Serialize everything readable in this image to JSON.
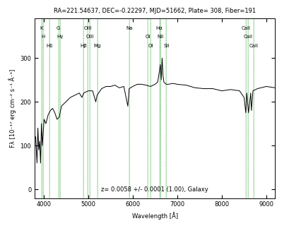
{
  "chart_data": {
    "type": "line",
    "title": "RA=221.54637, DEC=-0.22297, MJD=51662, Plate= 308, Fiber=191",
    "x_label": "Wavelength [Å]",
    "y_label": "Fλ [10⁻¹⁷ erg cm⁻² s⁻¹ Å⁻¹]",
    "annotation": "z= 0.0058 +/- 0.0001 (1.00), Galaxy",
    "x": [
      3820,
      3850,
      3870,
      3890,
      3910,
      3930,
      3950,
      3970,
      3990,
      4010,
      4050,
      4100,
      4150,
      4200,
      4250,
      4300,
      4350,
      4400,
      4450,
      4500,
      4600,
      4700,
      4800,
      4860,
      4900,
      5000,
      5100,
      5170,
      5200,
      5300,
      5400,
      5500,
      5600,
      5700,
      5800,
      5890,
      5920,
      6000,
      6100,
      6200,
      6300,
      6400,
      6500,
      6560,
      6600,
      6620,
      6640,
      6660,
      6680,
      6700,
      6750,
      6800,
      6900,
      7000,
      7200,
      7400,
      7600,
      7800,
      8000,
      8200,
      8400,
      8500,
      8540,
      8560,
      8600,
      8650,
      8665,
      8700,
      8800,
      9000,
      9200
    ],
    "values": [
      120,
      60,
      140,
      90,
      110,
      60,
      150,
      100,
      130,
      160,
      150,
      170,
      180,
      185,
      175,
      160,
      165,
      190,
      195,
      200,
      210,
      215,
      220,
      210,
      220,
      225,
      225,
      200,
      215,
      230,
      235,
      235,
      238,
      232,
      235,
      190,
      230,
      235,
      240,
      240,
      238,
      235,
      240,
      245,
      270,
      285,
      250,
      300,
      260,
      245,
      240,
      240,
      242,
      240,
      238,
      232,
      230,
      230,
      225,
      228,
      225,
      210,
      175,
      220,
      175,
      220,
      180,
      225,
      230,
      235,
      232
    ],
    "color": "#000000",
    "lines": [
      {
        "label": "K",
        "wavelength": 3957
      },
      {
        "label": "H",
        "wavelength": 3992
      },
      {
        "label": "Hδ",
        "wavelength": 4126
      },
      {
        "label": "G",
        "wavelength": 4330
      },
      {
        "label": "Hγ",
        "wavelength": 4366
      },
      {
        "label": "Hβ",
        "wavelength": 4889
      },
      {
        "label": "OIII",
        "wavelength": 4988
      },
      {
        "label": "OIII",
        "wavelength": 5036
      },
      {
        "label": "Mg",
        "wavelength": 5205
      },
      {
        "label": "Na",
        "wavelength": 5928
      },
      {
        "label": "OI",
        "wavelength": 6337
      },
      {
        "label": "OI",
        "wavelength": 6400
      },
      {
        "label": "Hα",
        "wavelength": 6601
      },
      {
        "label": "NII",
        "wavelength": 6621
      },
      {
        "label": "SII",
        "wavelength": 6755
      },
      {
        "label": "CaII",
        "wavelength": 8547
      },
      {
        "label": "CaII",
        "wavelength": 8592
      },
      {
        "label": "CaII",
        "wavelength": 8712
      }
    ],
    "xlim": [
      3800,
      9200
    ],
    "xticks": [
      4000,
      5000,
      6000,
      7000,
      8000,
      9000
    ],
    "ylim": [
      -20,
      390
    ],
    "yticks": [
      0,
      100,
      200,
      300
    ],
    "grid": false
  }
}
